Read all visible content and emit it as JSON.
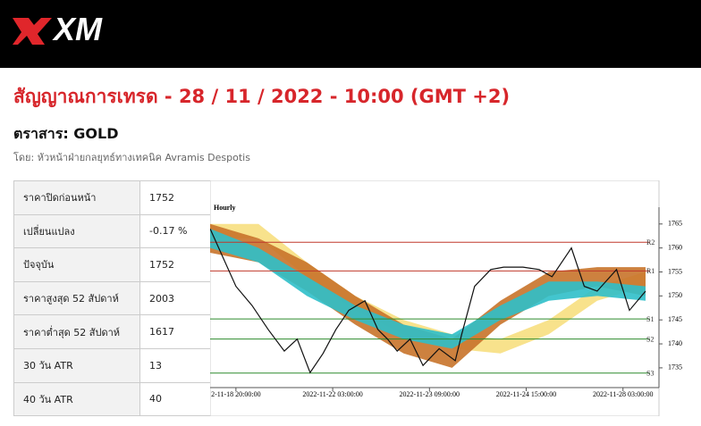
{
  "header": {
    "logo": "XM"
  },
  "title": "สัญญาณการเทรด - 28 / 11 / 2022 - 10:00 (GMT +2)",
  "instrument": "ตราสาร: GOLD",
  "author": "โดย: หัวหน้าฝ่ายกลยุทธ์ทางเทคนิค Avramis Despotis",
  "table": {
    "rows": [
      [
        "ราคาปิดก่อนหน้า",
        "1752"
      ],
      [
        "เปลี่ยนแปลง",
        "-0.17 %"
      ],
      [
        "ปัจจุบัน",
        "1752"
      ],
      [
        "ราคาสูงสุด 52 สัปดาห์",
        "2003"
      ],
      [
        "ราคาต่ำสุด 52 สัปดาห์",
        "1617"
      ],
      [
        "30 วัน ATR",
        "13"
      ],
      [
        "40 วัน ATR",
        "40"
      ]
    ]
  },
  "chart_data": {
    "type": "line",
    "title": "Hourly",
    "xlim": [
      0,
      135
    ],
    "ylim": [
      1732,
      1768.5
    ],
    "xticks": [
      {
        "value": 8,
        "label": "2-11-18 20:00:00"
      },
      {
        "value": 38,
        "label": "2022-11-22 03:00:00"
      },
      {
        "value": 68,
        "label": "2022-11-23 09:00:00"
      },
      {
        "value": 98,
        "label": "2022-11-24 15:00:00"
      },
      {
        "value": 128,
        "label": "2022-11-28 03:00:00"
      }
    ],
    "yticks": [
      1735,
      1740,
      1745,
      1750,
      1755,
      1760,
      1765
    ],
    "series": [
      {
        "color": "#111111",
        "x": [
          0,
          4,
          8,
          13,
          18,
          23,
          27,
          31,
          35,
          39,
          43,
          48,
          52,
          55,
          58,
          62,
          66,
          71,
          76,
          78,
          82,
          87,
          91,
          97,
          102,
          106,
          112,
          116,
          120,
          126,
          130,
          135
        ],
        "values": [
          1764,
          1758,
          1752,
          1748,
          1743,
          1738.5,
          1741,
          1734,
          1738,
          1743,
          1747,
          1749,
          1743,
          1741,
          1738.5,
          1741,
          1735.5,
          1739,
          1736.5,
          1742,
          1752,
          1755.5,
          1756,
          1756,
          1755.5,
          1754,
          1760,
          1752,
          1751,
          1755.5,
          1747,
          1751
        ]
      }
    ],
    "bands": [
      {
        "color": "#f7df7f",
        "x": [
          0,
          15,
          30,
          45,
          60,
          75,
          90,
          105,
          120,
          135
        ],
        "upper": [
          1765,
          1765,
          1757,
          1750,
          1745,
          1742,
          1741,
          1745,
          1752,
          1755
        ],
        "lower": [
          1762,
          1762,
          1754,
          1747,
          1742,
          1739,
          1738,
          1742,
          1749,
          1752
        ]
      },
      {
        "color": "#c8732a",
        "x": [
          0,
          15,
          30,
          45,
          60,
          75,
          90,
          105,
          120,
          135
        ],
        "upper": [
          1765,
          1762,
          1757,
          1750,
          1744,
          1741,
          1749,
          1755,
          1756,
          1756
        ],
        "lower": [
          1759,
          1757,
          1751,
          1744,
          1738,
          1735,
          1744,
          1750,
          1752,
          1750
        ]
      },
      {
        "color": "#2fbfc9",
        "x": [
          0,
          15,
          30,
          45,
          60,
          75,
          90,
          105,
          120,
          135
        ],
        "upper": [
          1764,
          1760,
          1754,
          1748,
          1744,
          1742,
          1748,
          1753,
          1753,
          1752
        ],
        "lower": [
          1760,
          1757,
          1750,
          1745,
          1741,
          1739,
          1745,
          1749,
          1750,
          1749
        ]
      }
    ],
    "levels": [
      {
        "label": "R2",
        "value": 1761.2,
        "color": "#c0392b"
      },
      {
        "label": "R1",
        "value": 1755.2,
        "color": "#c0392b"
      },
      {
        "label": "S1",
        "value": 1745.2,
        "color": "#2e8b2e"
      },
      {
        "label": "S2",
        "value": 1741,
        "color": "#2e8b2e"
      },
      {
        "label": "S3",
        "value": 1733.9,
        "color": "#2e8b2e"
      }
    ]
  }
}
